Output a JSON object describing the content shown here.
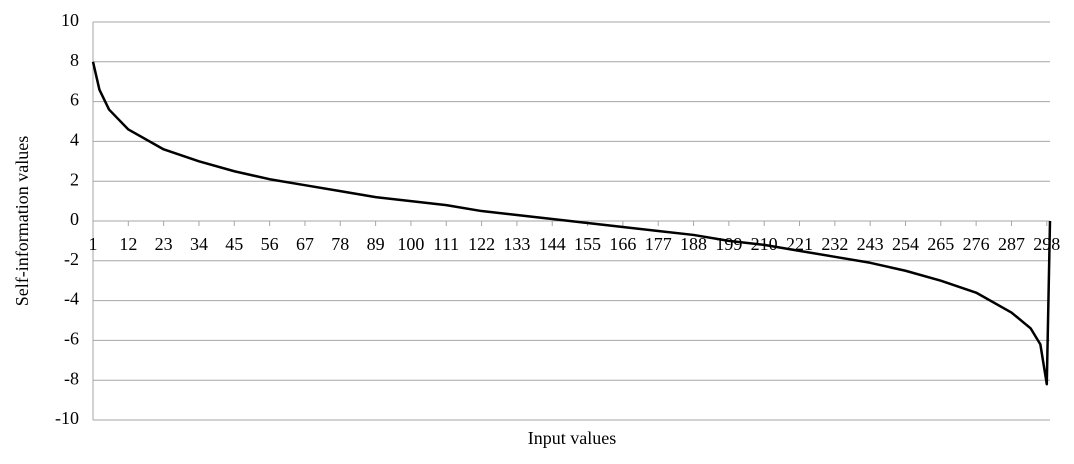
{
  "chart_data": {
    "type": "line",
    "x_label": "Input values",
    "y_label": "Self-information  values",
    "x": [
      1,
      3,
      6,
      12,
      23,
      34,
      45,
      56,
      67,
      78,
      89,
      100,
      111,
      122,
      133,
      144,
      155,
      166,
      177,
      188,
      199,
      210,
      221,
      232,
      243,
      254,
      265,
      276,
      287,
      293,
      296,
      298,
      299
    ],
    "series": [
      {
        "color": "#000000",
        "values": [
          8.0,
          6.6,
          5.6,
          4.6,
          3.6,
          3.0,
          2.5,
          2.1,
          1.8,
          1.5,
          1.2,
          1.0,
          0.8,
          0.5,
          0.3,
          0.1,
          -0.1,
          -0.3,
          -0.5,
          -0.7,
          -1.0,
          -1.2,
          -1.5,
          -1.8,
          -2.1,
          -2.5,
          -3.0,
          -3.6,
          -4.6,
          -5.4,
          -6.2,
          -8.2,
          0
        ]
      }
    ],
    "xlim": [
      1,
      299
    ],
    "xticks": [
      1,
      12,
      23,
      34,
      45,
      56,
      67,
      78,
      89,
      100,
      111,
      122,
      133,
      144,
      155,
      166,
      177,
      188,
      199,
      210,
      221,
      232,
      243,
      254,
      265,
      276,
      287,
      298
    ],
    "ylim": [
      -10,
      10
    ],
    "yticks": [
      -10,
      -8,
      -6,
      -4,
      -2,
      0,
      2,
      4,
      6,
      8,
      10
    ],
    "grid": true
  }
}
